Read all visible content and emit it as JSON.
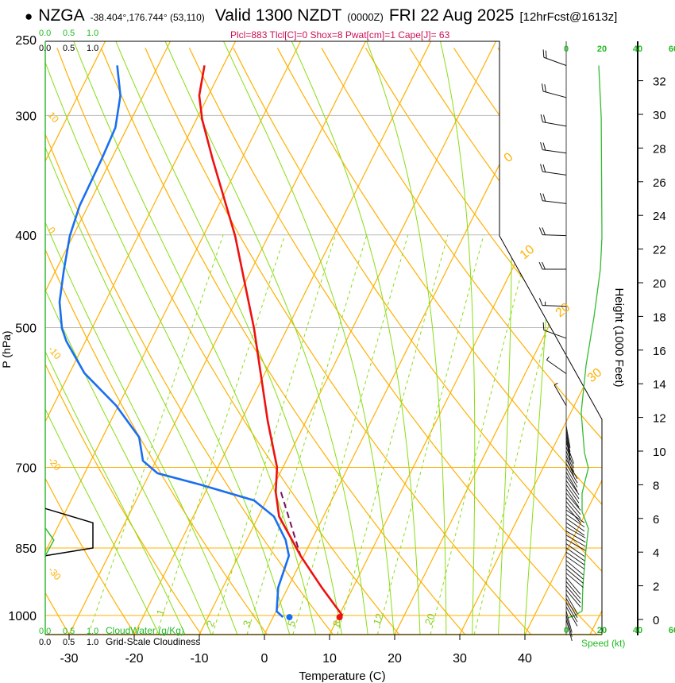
{
  "header": {
    "bullet": "●",
    "station": "NZGA",
    "coords": "-38.404°,176.744° (53,110)",
    "valid": "Valid 1300 NZDT",
    "zulu": "(0000Z)",
    "date": "FRI 22 Aug 2025",
    "fcst": "[12hrFcst@1613z]"
  },
  "indices": "Plcl=883 Tlcl[C]=0 Shox=8 Pwat[cm]=1 Cape[J]= 63",
  "colors": {
    "temperature": "#ee1111",
    "dewpoint": "#1a6ff0",
    "parcel": "#7a1060",
    "isotherm": "#ffb000",
    "moist": "#88dd11",
    "speed": "#33bb33",
    "indices": "#cc1155"
  },
  "chart_data": {
    "type": "line",
    "title": "Skew-T log-P sounding NZGA",
    "xlabel": "Temperature (C)",
    "ylabel": "P (hPa)",
    "y2label": "Height (1000 Feet)",
    "speed_label": "Speed (kt)",
    "pressure_ticks": [
      "250",
      "300",
      "400",
      "500",
      "700",
      "850",
      "1000"
    ],
    "temp_ticks": [
      "-30",
      "-20",
      "-10",
      "0",
      "10",
      "20",
      "30",
      "40"
    ],
    "height_ticks": [
      "0",
      "2",
      "4",
      "6",
      "8",
      "10",
      "12",
      "14",
      "16",
      "18",
      "20",
      "22",
      "24",
      "26",
      "28",
      "30",
      "32"
    ],
    "speed_ticks": [
      "0",
      "20",
      "40",
      "60"
    ],
    "cloud_ticks": [
      "0.0",
      "0.5",
      "1.0"
    ],
    "cloudwater_label": "CloudWater (g/Kg)",
    "cloudiness_label": "Grid-Scale Cloudiness",
    "isotherm_labels": [
      "0",
      "10",
      "20",
      "30"
    ],
    "dry_adiabat_labels": [
      "10",
      "0",
      "-10",
      "-20",
      "-30"
    ],
    "mixing_ratio_labels": [
      "1",
      "2",
      "3",
      "5",
      "8",
      "12",
      "20"
    ],
    "xlim": [
      -35,
      47
    ],
    "ylim_hPa": [
      1047,
      250
    ],
    "temperature": [
      [
        266,
        -52.9
      ],
      [
        286,
        -51.4
      ],
      [
        303,
        -49.1
      ],
      [
        333,
        -44.5
      ],
      [
        401,
        -35.1
      ],
      [
        501,
        -25.1
      ],
      [
        626,
        -15.9
      ],
      [
        700,
        -10.9
      ],
      [
        743,
        -9.2
      ],
      [
        788,
        -6.8
      ],
      [
        834,
        -3.0
      ],
      [
        866,
        -0.5
      ],
      [
        935,
        5.2
      ],
      [
        1000,
        10.5
      ]
    ],
    "dewpoint": [
      [
        266,
        -66.3
      ],
      [
        286,
        -63.5
      ],
      [
        309,
        -61.8
      ],
      [
        333,
        -61.5
      ],
      [
        373,
        -61.3
      ],
      [
        401,
        -60.5
      ],
      [
        435,
        -58.8
      ],
      [
        470,
        -57.0
      ],
      [
        501,
        -54.6
      ],
      [
        517,
        -52.9
      ],
      [
        558,
        -47.7
      ],
      [
        603,
        -40.4
      ],
      [
        651,
        -34.4
      ],
      [
        689,
        -32.0
      ],
      [
        710,
        -28.8
      ],
      [
        729,
        -21.6
      ],
      [
        758,
        -11.9
      ],
      [
        788,
        -7.6
      ],
      [
        834,
        -4.0
      ],
      [
        866,
        -2.3
      ],
      [
        935,
        -1.5
      ],
      [
        990,
        0.1
      ],
      [
        1004,
        1.5
      ]
    ],
    "surface_temperature": [
      1004,
      10.2
    ],
    "surface_dewpoint": [
      1004,
      2.5
    ],
    "parcel": [
      [
        743,
        -8.4
      ],
      [
        866,
        -0.5
      ]
    ],
    "wind_speed_kt": [
      [
        32.9,
        18.2
      ],
      [
        29.8,
        19.6
      ],
      [
        22.7,
        20
      ],
      [
        20.8,
        19.1
      ],
      [
        18,
        15.6
      ],
      [
        15.1,
        11.1
      ],
      [
        12.3,
        8.4
      ],
      [
        9.9,
        10.2
      ],
      [
        9,
        12.4
      ],
      [
        7.5,
        8.9
      ],
      [
        6.4,
        8.9
      ],
      [
        5.4,
        12.4
      ],
      [
        3.8,
        10.7
      ],
      [
        1.9,
        9.3
      ],
      [
        0.5,
        8.9
      ],
      [
        0.2,
        4
      ],
      [
        0.1,
        0.9
      ]
    ],
    "wind_barbs": [
      {
        "h": 32.9,
        "dir": 250,
        "kt": 20
      },
      {
        "h": 31,
        "dir": 255,
        "kt": 20
      },
      {
        "h": 29.3,
        "dir": 260,
        "kt": 20
      },
      {
        "h": 27.7,
        "dir": 262,
        "kt": 20
      },
      {
        "h": 26.4,
        "dir": 262,
        "kt": 20
      },
      {
        "h": 24.7,
        "dir": 263,
        "kt": 20
      },
      {
        "h": 22.8,
        "dir": 268,
        "kt": 20
      },
      {
        "h": 20.8,
        "dir": 270,
        "kt": 20
      },
      {
        "h": 18.6,
        "dir": 268,
        "kt": 15
      },
      {
        "h": 16.7,
        "dir": 250,
        "kt": 10
      },
      {
        "h": 14.6,
        "dir": 235,
        "kt": 5
      },
      {
        "h": 12.7,
        "dir": 210,
        "kt": 5
      }
    ],
    "light_wind_dirs": [
      [
        11.5,
        170
      ],
      [
        10.5,
        160
      ],
      [
        9.5,
        150
      ],
      [
        8.5,
        145
      ],
      [
        7.5,
        140
      ],
      [
        6.5,
        125
      ],
      [
        5.5,
        120
      ],
      [
        4.5,
        125
      ],
      [
        3.5,
        130
      ],
      [
        2.5,
        140
      ],
      [
        1.5,
        150
      ],
      [
        0.5,
        165
      ]
    ],
    "cloudiness": [
      [
        773,
        0
      ],
      [
        800,
        1.0
      ],
      [
        850,
        1.0
      ],
      [
        866,
        0
      ]
    ],
    "cloudwater": [
      [
        810,
        0
      ],
      [
        834,
        0.18
      ],
      [
        866,
        0
      ]
    ]
  }
}
